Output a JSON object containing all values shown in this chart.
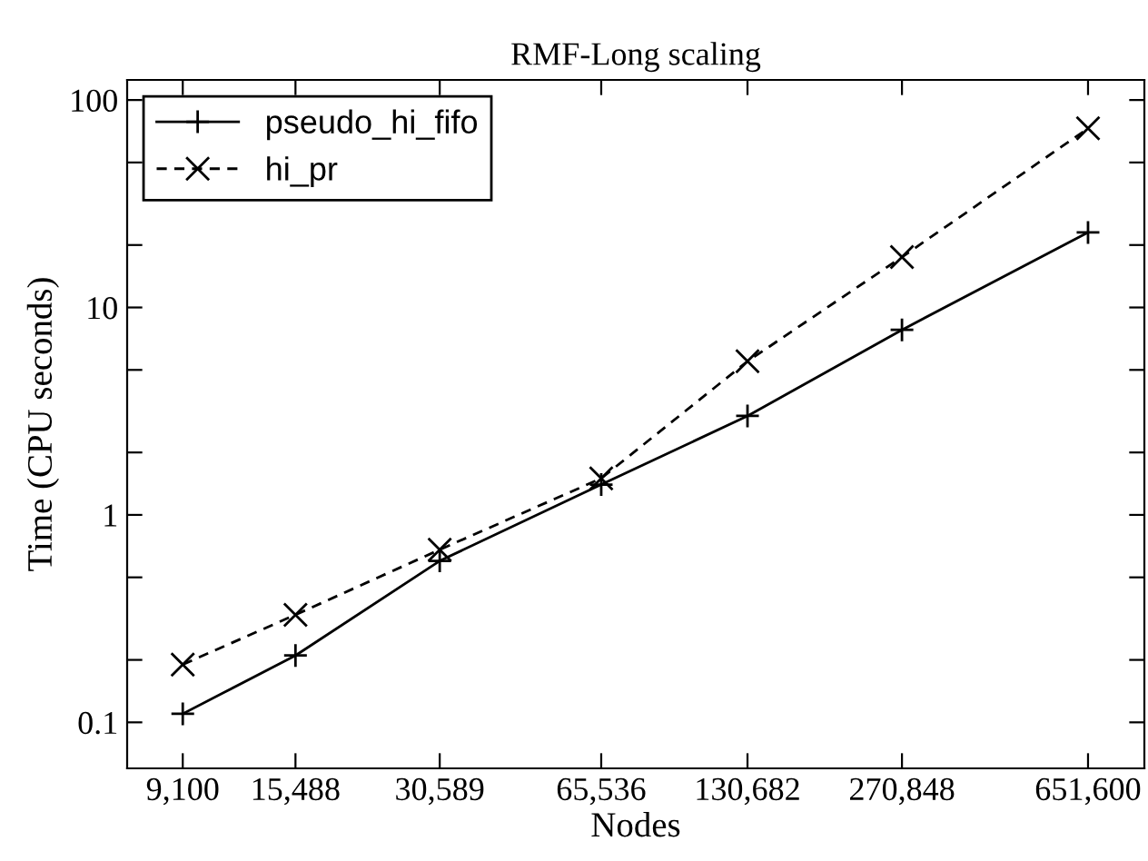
{
  "chart_data": {
    "type": "line",
    "title": "RMF-Long scaling",
    "xlabel": "Nodes",
    "ylabel": "Time (CPU seconds)",
    "log": "xy",
    "x": [
      9100,
      15488,
      30589,
      65536,
      130682,
      270848,
      651600
    ],
    "xlim": [
      7000,
      850000
    ],
    "xticks": [
      {
        "value": 9100,
        "label": "9,100"
      },
      {
        "value": 15488,
        "label": "15,488"
      },
      {
        "value": 30589,
        "label": "30,589"
      },
      {
        "value": 65536,
        "label": "65,536"
      },
      {
        "value": 130682,
        "label": "130,682"
      },
      {
        "value": 270848,
        "label": "270,848"
      },
      {
        "value": 651600,
        "label": "651,600"
      }
    ],
    "ylim": [
      0.06,
      125
    ],
    "yticks": [
      {
        "value": 0.1,
        "label": "0.1"
      },
      {
        "value": 0.2,
        "label": null
      },
      {
        "value": 0.5,
        "label": null
      },
      {
        "value": 1,
        "label": "1"
      },
      {
        "value": 2,
        "label": null
      },
      {
        "value": 5,
        "label": null
      },
      {
        "value": 10,
        "label": "10"
      },
      {
        "value": 20,
        "label": null
      },
      {
        "value": 50,
        "label": null
      },
      {
        "value": 100,
        "label": "100"
      }
    ],
    "grid": false,
    "legend": "top left",
    "series": [
      {
        "name": "pseudo_hi_fifo",
        "color": "#000000",
        "marker": "cross",
        "line_style": "solid",
        "values": [
          0.11,
          0.21,
          0.6,
          1.4,
          3.0,
          7.8,
          23
        ]
      },
      {
        "name": "hi_pr",
        "color": "#000000",
        "marker": "x",
        "line_style": "dashed",
        "values": [
          0.19,
          0.33,
          0.68,
          1.5,
          5.5,
          17.5,
          73
        ]
      }
    ]
  }
}
